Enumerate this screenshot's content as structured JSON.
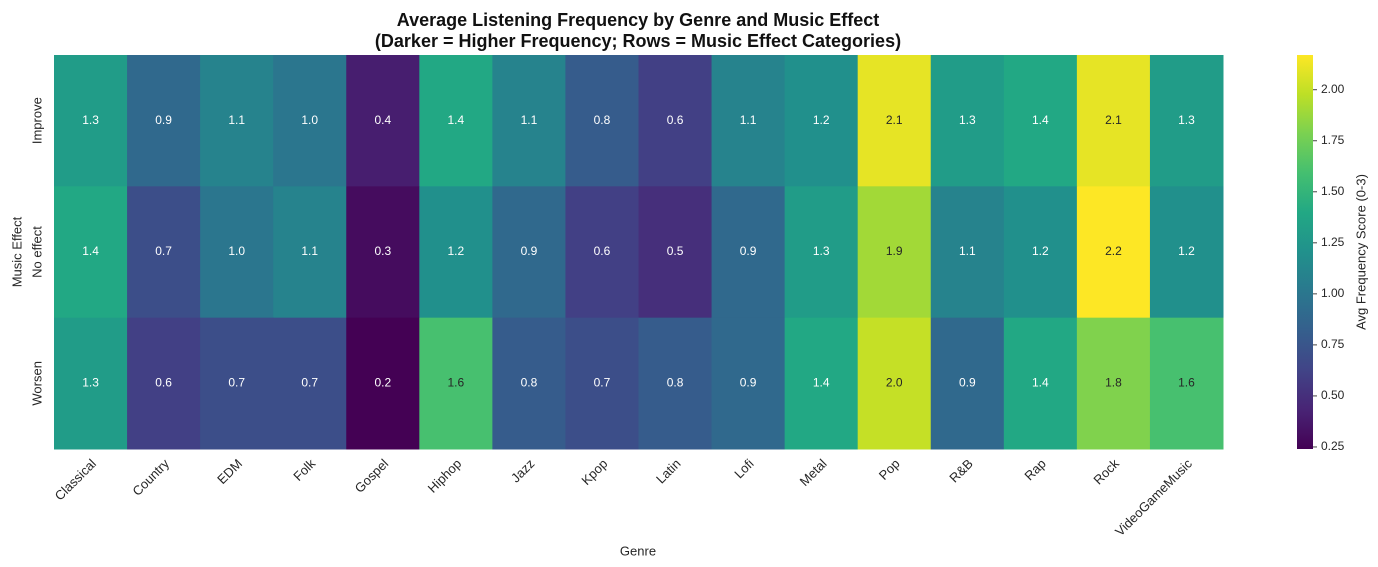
{
  "chart_data": {
    "type": "heatmap",
    "title": "Average Listening Frequency by Genre and Music Effect",
    "subtitle": "(Darker = Higher Frequency; Rows = Music Effect Categories)",
    "x_label": "Genre",
    "y_label": "Music Effect",
    "colorbar_label": "Avg Frequency Score (0-3)",
    "colormap": "viridis",
    "categories": [
      "Classical",
      "Country",
      "EDM",
      "Folk",
      "Gospel",
      "Hiphop",
      "Jazz",
      "Kpop",
      "Latin",
      "Lofi",
      "Metal",
      "Pop",
      "R&B",
      "Rap",
      "Rock",
      "VideoGameMusic"
    ],
    "series": [
      {
        "name": "Improve",
        "values": [
          1.3,
          0.9,
          1.1,
          1.0,
          0.4,
          1.4,
          1.1,
          0.8,
          0.6,
          1.1,
          1.2,
          2.1,
          1.3,
          1.4,
          2.1,
          1.3
        ],
        "value_labels": [
          "1.3",
          "0.9",
          "1.1",
          "1.0",
          "0.4",
          "1.4",
          "1.1",
          "0.8",
          "0.6",
          "1.1",
          "1.2",
          "2.1",
          "1.3",
          "1.4",
          "2.1",
          "1.3"
        ]
      },
      {
        "name": "No effect",
        "values": [
          1.4,
          0.7,
          1.0,
          1.1,
          0.3,
          1.2,
          0.9,
          0.6,
          0.5,
          0.9,
          1.3,
          1.9,
          1.1,
          1.2,
          2.2,
          1.2
        ],
        "value_labels": [
          "1.4",
          "0.7",
          "1.0",
          "1.1",
          "0.3",
          "1.2",
          "0.9",
          "0.6",
          "0.5",
          "0.9",
          "1.3",
          "1.9",
          "1.1",
          "1.2",
          "2.2",
          "1.2"
        ]
      },
      {
        "name": "Worsen",
        "values": [
          1.3,
          0.6,
          0.7,
          0.7,
          0.2,
          1.6,
          0.8,
          0.7,
          0.8,
          0.9,
          1.4,
          2.0,
          0.9,
          1.4,
          1.8,
          1.6
        ],
        "value_labels": [
          "1.3",
          "0.6",
          "0.7",
          "0.7",
          "0.2",
          "1.6",
          "0.8",
          "0.7",
          "0.8",
          "0.9",
          "1.4",
          "2.0",
          "0.9",
          "1.4",
          "1.8",
          "1.6"
        ]
      }
    ],
    "zlim": [
      0.24,
      2.17
    ],
    "zticks": [
      0.25,
      {
        "value": 0.5,
        "label": "0.50"
      },
      0.75,
      {
        "value": 1,
        "label": "1.00"
      },
      1.25,
      {
        "value": 1.5,
        "label": "1.50"
      },
      1.75,
      {
        "value": 2,
        "label": "2.00"
      }
    ]
  }
}
